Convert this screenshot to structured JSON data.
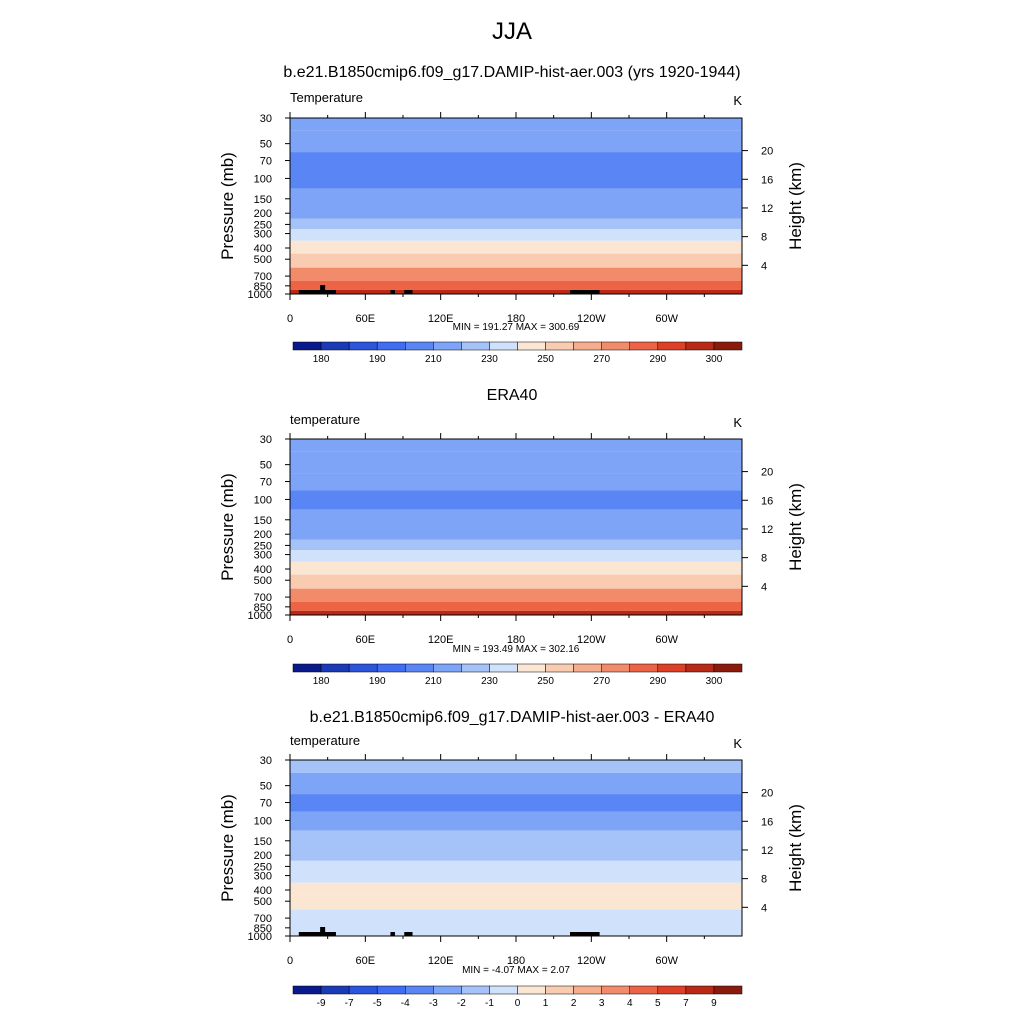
{
  "figure": {
    "title": "JJA"
  },
  "chart_data": [
    {
      "type": "heatmap",
      "title": "b.e21.B1850cmip6.f09_g17.DAMIP-hist-aer.003 (yrs 1920-1944)",
      "field_label": "Temperature",
      "units": "K",
      "ylabel": "Pressure (mb)",
      "y2label": "Height (km)",
      "xticks": [
        "0",
        "60E",
        "120E",
        "180",
        "120W",
        "60W"
      ],
      "xtick_lon": [
        0,
        60,
        120,
        180,
        240,
        300
      ],
      "xlim": [
        0,
        360
      ],
      "yticks": [
        "30",
        "50",
        "70",
        "100",
        "150",
        "200",
        "250",
        "300",
        "400",
        "500",
        "700",
        "850",
        "1000"
      ],
      "ytick_p": [
        30,
        50,
        70,
        100,
        150,
        200,
        250,
        300,
        400,
        500,
        700,
        850,
        1000
      ],
      "y2ticks": [
        "20",
        "16",
        "12",
        "8",
        "4"
      ],
      "y2tick_km": [
        20,
        16,
        12,
        8,
        4
      ],
      "stats": "MIN = 191.27  MAX = 300.69",
      "colorbar": [
        "180",
        "190",
        "210",
        "230",
        "250",
        "270",
        "290",
        "300"
      ],
      "bands": [
        {
          "p": 30,
          "value": 215
        },
        {
          "p": 50,
          "value": 210
        },
        {
          "p": 70,
          "value": 205
        },
        {
          "p": 100,
          "value": 205
        },
        {
          "p": 150,
          "value": 210
        },
        {
          "p": 200,
          "value": 215
        },
        {
          "p": 250,
          "value": 220
        },
        {
          "p": 300,
          "value": 235
        },
        {
          "p": 400,
          "value": 245
        },
        {
          "p": 500,
          "value": 255
        },
        {
          "p": 700,
          "value": 270
        },
        {
          "p": 850,
          "value": 285
        },
        {
          "p": 1000,
          "value": 295
        }
      ],
      "terrain": true
    },
    {
      "type": "heatmap",
      "title": "ERA40",
      "field_label": "temperature",
      "units": "K",
      "ylabel": "Pressure (mb)",
      "y2label": "Height (km)",
      "xticks": [
        "0",
        "60E",
        "120E",
        "180",
        "120W",
        "60W"
      ],
      "xtick_lon": [
        0,
        60,
        120,
        180,
        240,
        300
      ],
      "xlim": [
        0,
        360
      ],
      "yticks": [
        "30",
        "50",
        "70",
        "100",
        "150",
        "200",
        "250",
        "300",
        "400",
        "500",
        "700",
        "850",
        "1000"
      ],
      "ytick_p": [
        30,
        50,
        70,
        100,
        150,
        200,
        250,
        300,
        400,
        500,
        700,
        850,
        1000
      ],
      "y2ticks": [
        "20",
        "16",
        "12",
        "8",
        "4"
      ],
      "y2tick_km": [
        20,
        16,
        12,
        8,
        4
      ],
      "stats": "MIN = 193.49  MAX = 302.16",
      "colorbar": [
        "180",
        "190",
        "210",
        "230",
        "250",
        "270",
        "290",
        "300"
      ],
      "bands": [
        {
          "p": 30,
          "value": 215
        },
        {
          "p": 50,
          "value": 210
        },
        {
          "p": 70,
          "value": 210
        },
        {
          "p": 100,
          "value": 205
        },
        {
          "p": 150,
          "value": 210
        },
        {
          "p": 200,
          "value": 215
        },
        {
          "p": 250,
          "value": 220
        },
        {
          "p": 300,
          "value": 235
        },
        {
          "p": 400,
          "value": 245
        },
        {
          "p": 500,
          "value": 255
        },
        {
          "p": 700,
          "value": 270
        },
        {
          "p": 850,
          "value": 285
        },
        {
          "p": 1000,
          "value": 295
        }
      ],
      "terrain": false
    },
    {
      "type": "heatmap",
      "title": "b.e21.B1850cmip6.f09_g17.DAMIP-hist-aer.003 - ERA40",
      "field_label": "temperature",
      "units": "K",
      "ylabel": "Pressure (mb)",
      "y2label": "Height (km)",
      "xticks": [
        "0",
        "60E",
        "120E",
        "180",
        "120W",
        "60W"
      ],
      "xtick_lon": [
        0,
        60,
        120,
        180,
        240,
        300
      ],
      "xlim": [
        0,
        360
      ],
      "yticks": [
        "30",
        "50",
        "70",
        "100",
        "150",
        "200",
        "250",
        "300",
        "400",
        "500",
        "700",
        "850",
        "1000"
      ],
      "ytick_p": [
        30,
        50,
        70,
        100,
        150,
        200,
        250,
        300,
        400,
        500,
        700,
        850,
        1000
      ],
      "y2ticks": [
        "20",
        "16",
        "12",
        "8",
        "4"
      ],
      "y2tick_km": [
        20,
        16,
        12,
        8,
        4
      ],
      "stats": "MIN =  -4.07  MAX =   2.07",
      "colorbar": [
        "-9",
        "-7",
        "-5",
        "-4",
        "-3",
        "-2",
        "-1",
        "0",
        "1",
        "2",
        "3",
        "4",
        "5",
        "7",
        "9"
      ],
      "bands": [
        {
          "p": 30,
          "value": -1
        },
        {
          "p": 50,
          "value": -2
        },
        {
          "p": 70,
          "value": -3
        },
        {
          "p": 100,
          "value": -2
        },
        {
          "p": 150,
          "value": -1.5
        },
        {
          "p": 200,
          "value": -1
        },
        {
          "p": 250,
          "value": -0.5
        },
        {
          "p": 300,
          "value": -0.5
        },
        {
          "p": 400,
          "value": 0.5
        },
        {
          "p": 500,
          "value": 0.5
        },
        {
          "p": 700,
          "value": -0.5
        },
        {
          "p": 850,
          "value": -0.5
        },
        {
          "p": 1000,
          "value": -0.5
        }
      ],
      "terrain": true
    }
  ],
  "colors": {
    "temp_scale": [
      "#0a1a8c",
      "#1a3ab8",
      "#2a55dc",
      "#3f6ef2",
      "#5a86f5",
      "#7ea4f7",
      "#a6c3f9",
      "#cfe1fb",
      "#fbe6d4",
      "#f9ccb2",
      "#f6ad8e",
      "#f28b6a",
      "#ec6346",
      "#de3f27",
      "#b82a15",
      "#8a1a0c"
    ],
    "diff_scale": [
      "#0a1a8c",
      "#1a3ab8",
      "#2a55dc",
      "#3f6ef2",
      "#5a86f5",
      "#7ea4f7",
      "#a6c3f9",
      "#cfe1fb",
      "#fbe6d4",
      "#f9ccb2",
      "#f6ad8e",
      "#f28b6a",
      "#ec6346",
      "#de3f27",
      "#b82a15",
      "#8a1a0c"
    ],
    "terrain": "#000000"
  }
}
